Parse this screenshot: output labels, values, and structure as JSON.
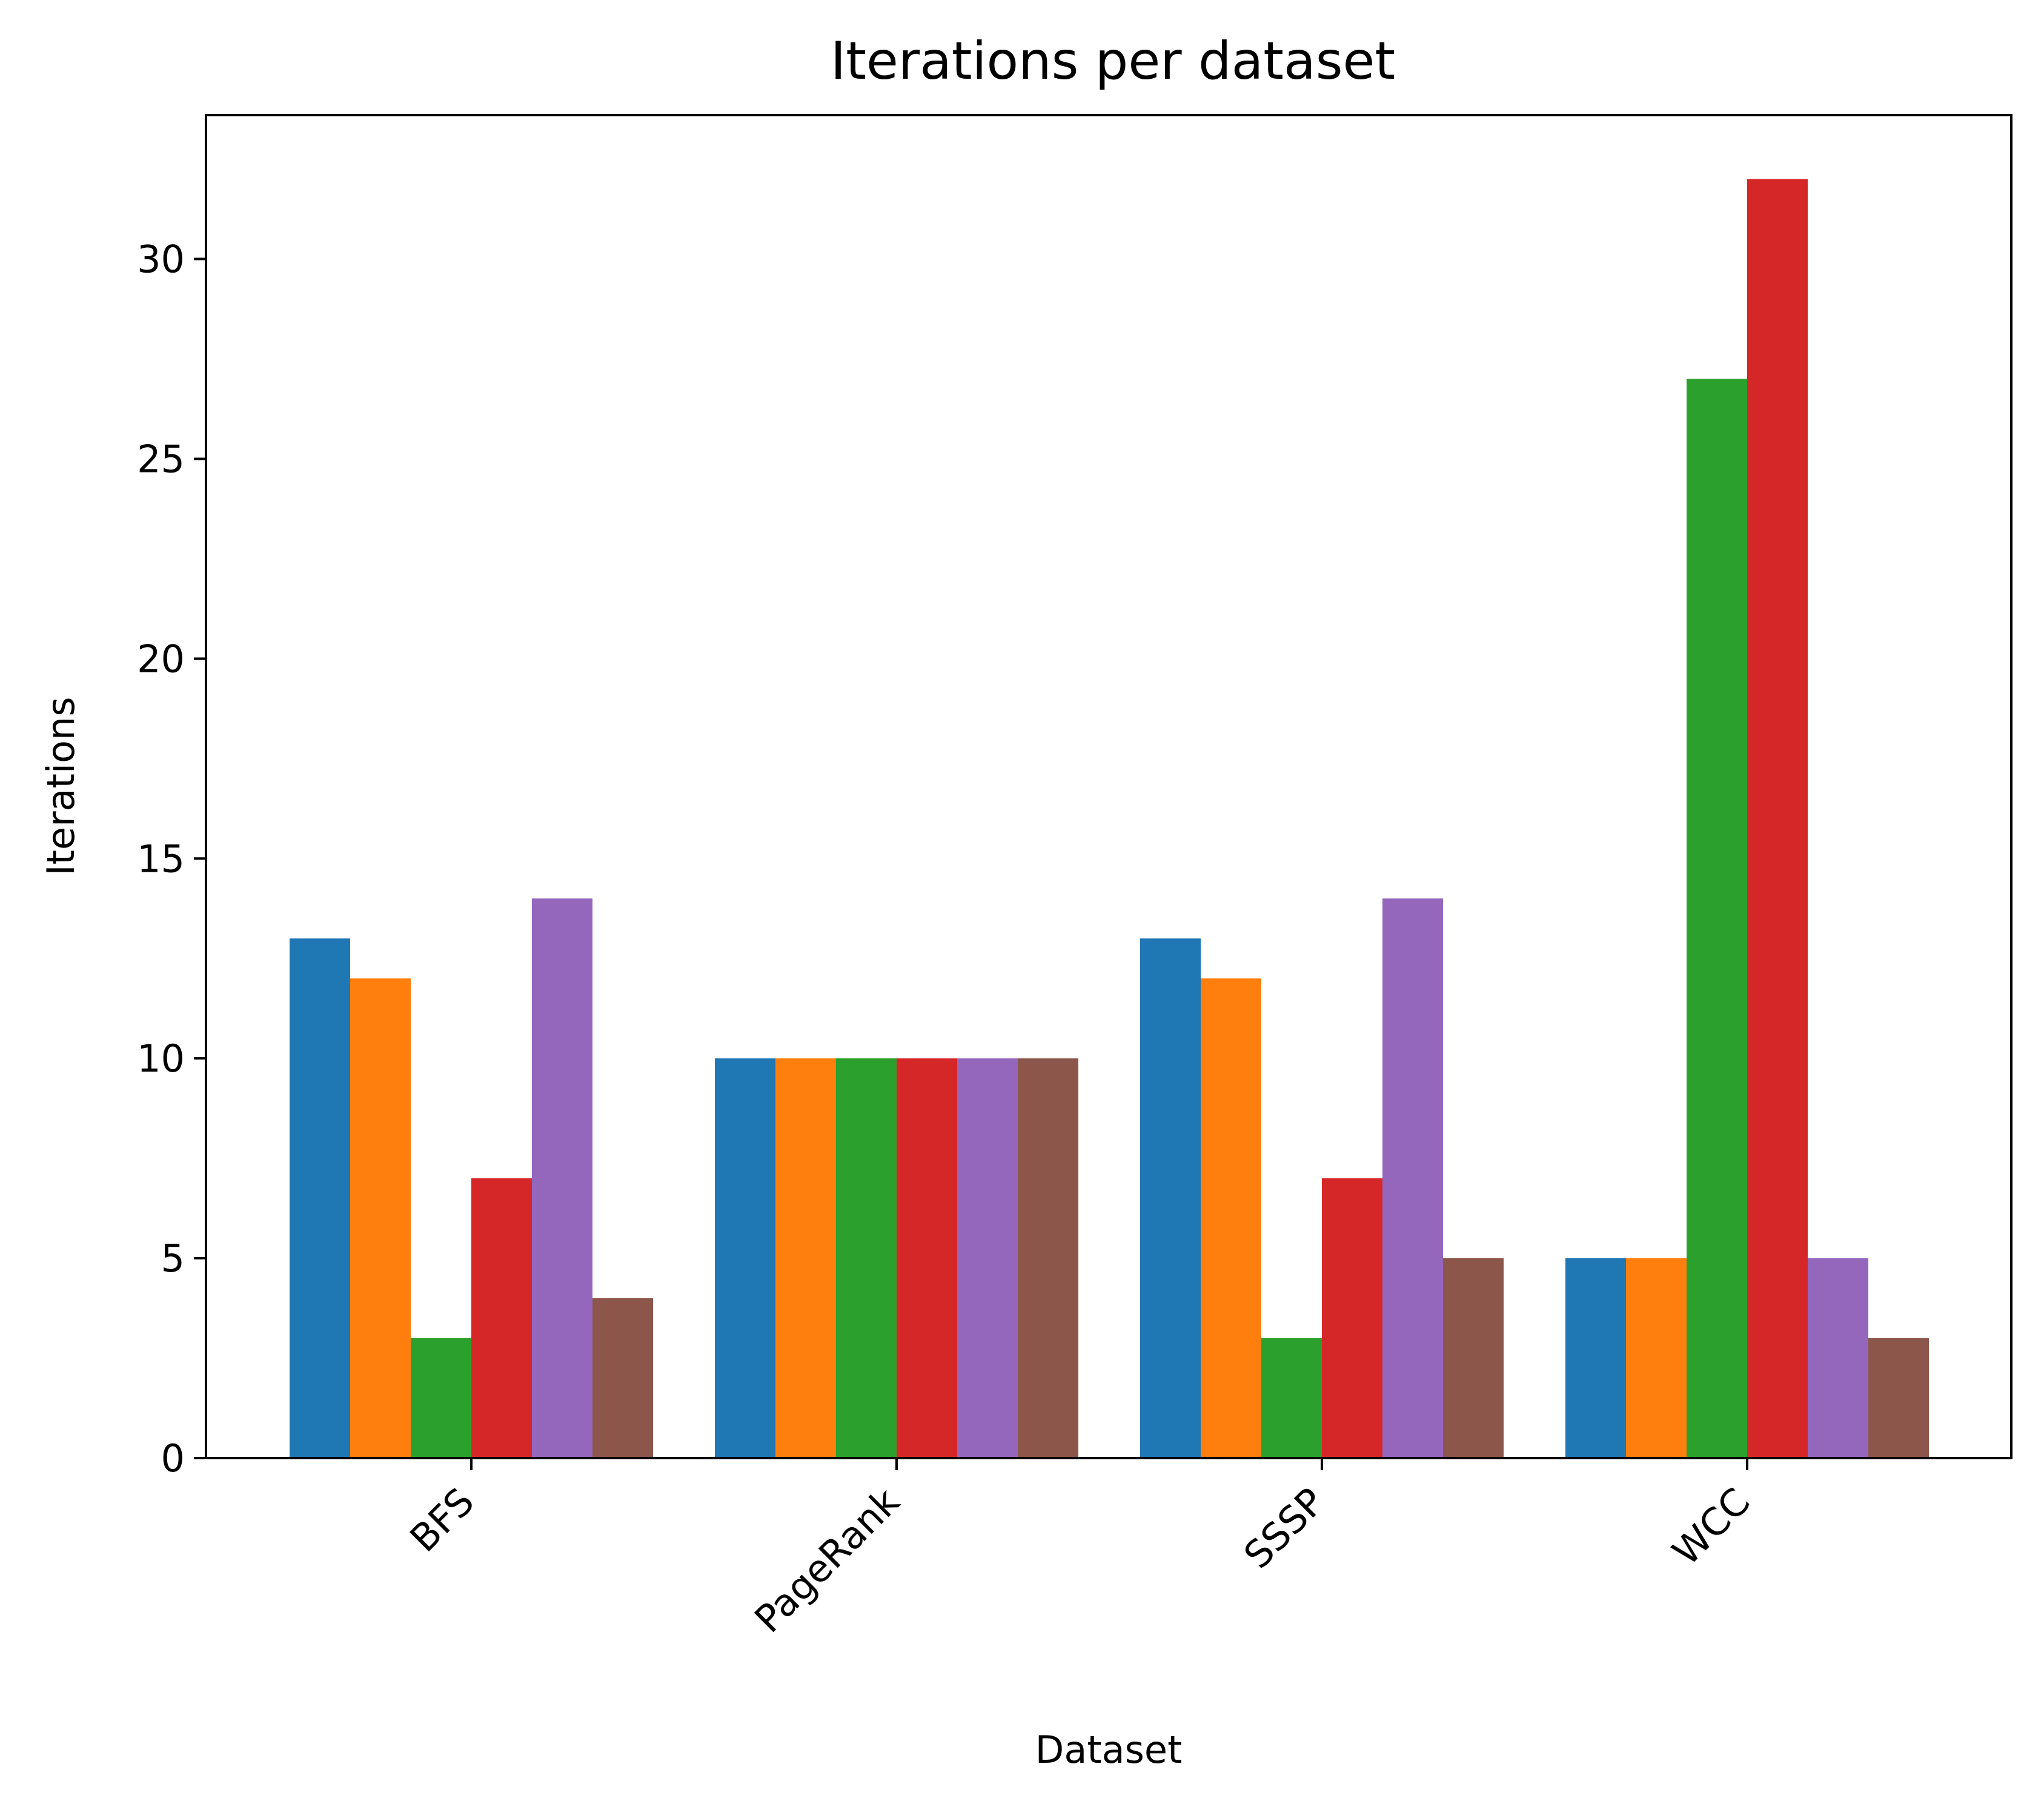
{
  "chart_data": {
    "type": "bar",
    "title": "Iterations per dataset",
    "xlabel": "Dataset",
    "ylabel": "Iterations",
    "categories": [
      "BFS",
      "PageRank",
      "SSSP",
      "WCC"
    ],
    "ylim": [
      0,
      33.6
    ],
    "yticks": [
      0,
      5,
      10,
      15,
      20,
      25,
      30
    ],
    "ytick_labels": [
      "0",
      "5",
      "10",
      "15",
      "20",
      "25",
      "30"
    ],
    "grid": false,
    "legend": "none",
    "series": [
      {
        "color": "#1f77b4",
        "values": [
          13,
          10,
          13,
          5
        ]
      },
      {
        "color": "#ff7f0e",
        "values": [
          12,
          10,
          12,
          5
        ]
      },
      {
        "color": "#2ca02c",
        "values": [
          3,
          10,
          3,
          27
        ]
      },
      {
        "color": "#d62728",
        "values": [
          7,
          10,
          7,
          32
        ]
      },
      {
        "color": "#9467bd",
        "values": [
          14,
          10,
          14,
          5
        ]
      },
      {
        "color": "#8c564b",
        "values": [
          4,
          10,
          5,
          3
        ]
      }
    ]
  }
}
